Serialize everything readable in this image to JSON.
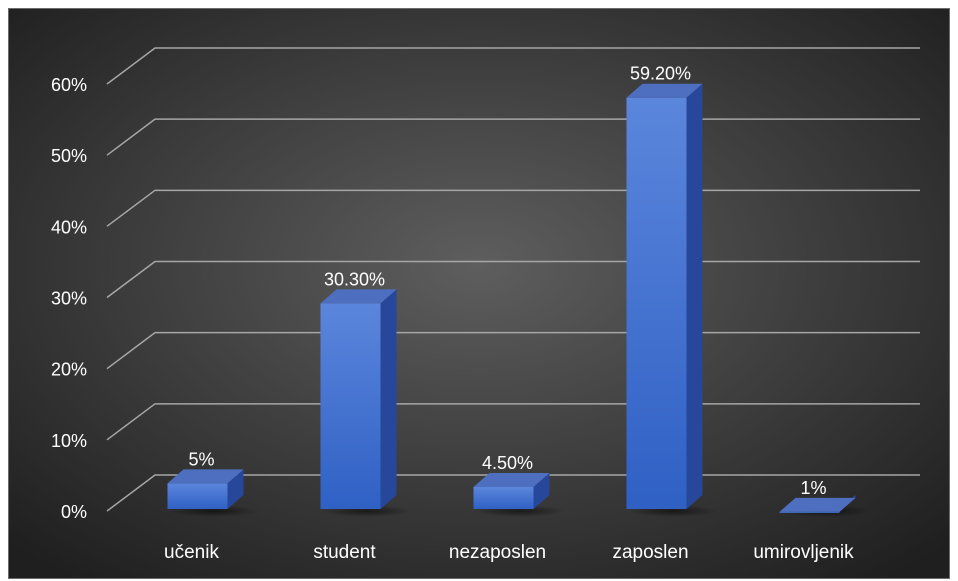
{
  "chart_data": {
    "type": "bar",
    "title": "",
    "xlabel": "",
    "ylabel": "",
    "categories": [
      "učenik",
      "student",
      "nezaposlen",
      "zaposlen",
      "umirovljenik"
    ],
    "values": [
      5,
      30.3,
      4.5,
      59.2,
      1
    ],
    "data_labels": [
      "5%",
      "30.30%",
      "4.50%",
      "59.20%",
      "1%"
    ],
    "y_ticks": [
      0,
      10,
      20,
      30,
      40,
      50,
      60
    ],
    "y_tick_labels": [
      "0%",
      "10%",
      "20%",
      "30%",
      "40%",
      "50%",
      "60%"
    ],
    "ylim": [
      0,
      60
    ],
    "grid": true,
    "style_3d": true,
    "bar_color": "#3f6fce",
    "background": [
      "#5e5e5e",
      "#1f1f1f"
    ],
    "text_color": "#ffffff",
    "gridline_color": "#a6a6a6"
  }
}
